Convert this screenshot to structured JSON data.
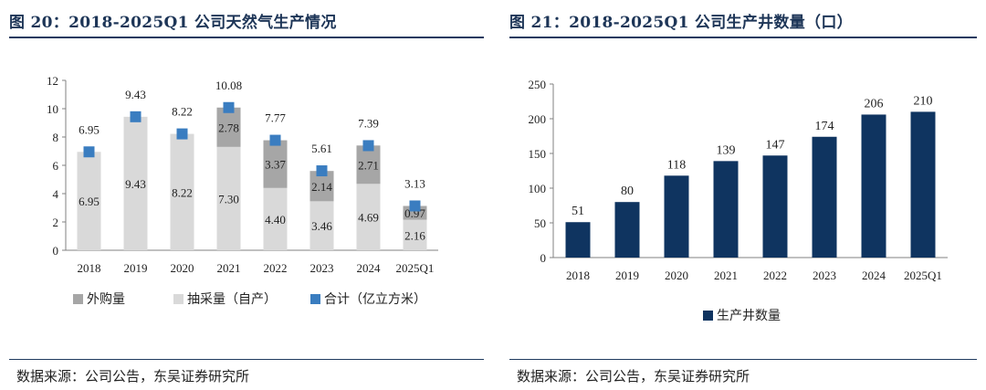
{
  "left_panel": {
    "title": "图 20：2018-2025Q1 公司天然气生产情况",
    "source": "数据来源：公司公告，东吴证券研究所"
  },
  "right_panel": {
    "title": "图 21：2018-2025Q1 公司生产井数量（口）",
    "source": "数据来源：公司公告，东吴证券研究所"
  },
  "chart_data": [
    {
      "type": "bar",
      "stacked": true,
      "title": "图 20：2018-2025Q1 公司天然气生产情况",
      "categories": [
        "2018",
        "2019",
        "2020",
        "2021",
        "2022",
        "2023",
        "2024",
        "2025Q1"
      ],
      "ylim": [
        0,
        12
      ],
      "yticks": [
        0,
        2,
        4,
        6,
        8,
        10,
        12
      ],
      "series": [
        {
          "name": "抽采量（自产）",
          "kind": "bar",
          "color": "#d9d9d9",
          "values": [
            6.95,
            9.43,
            8.22,
            7.3,
            4.4,
            3.46,
            4.69,
            2.16
          ]
        },
        {
          "name": "外购量",
          "kind": "bar",
          "color": "#a6a6a6",
          "values": [
            null,
            null,
            null,
            2.78,
            3.37,
            2.14,
            2.71,
            0.97
          ]
        },
        {
          "name": "合计（亿立方米）",
          "kind": "marker",
          "color": "#3a7dc0",
          "values": [
            6.95,
            9.43,
            8.22,
            10.08,
            7.77,
            5.61,
            7.39,
            3.13
          ]
        }
      ],
      "legend": [
        "外购量",
        "抽采量（自产）",
        "合计（亿立方米）"
      ],
      "legend_position": "bottom"
    },
    {
      "type": "bar",
      "title": "图 21：2018-2025Q1 公司生产井数量（口）",
      "categories": [
        "2018",
        "2019",
        "2020",
        "2021",
        "2022",
        "2023",
        "2024",
        "2025Q1"
      ],
      "ylim": [
        0,
        250
      ],
      "yticks": [
        0,
        50,
        100,
        150,
        200,
        250
      ],
      "series": [
        {
          "name": "生产井数量",
          "color": "#0f3460",
          "values": [
            51,
            80,
            118,
            139,
            147,
            174,
            206,
            210
          ]
        }
      ],
      "legend": [
        "生产井数量"
      ],
      "legend_position": "bottom"
    }
  ]
}
